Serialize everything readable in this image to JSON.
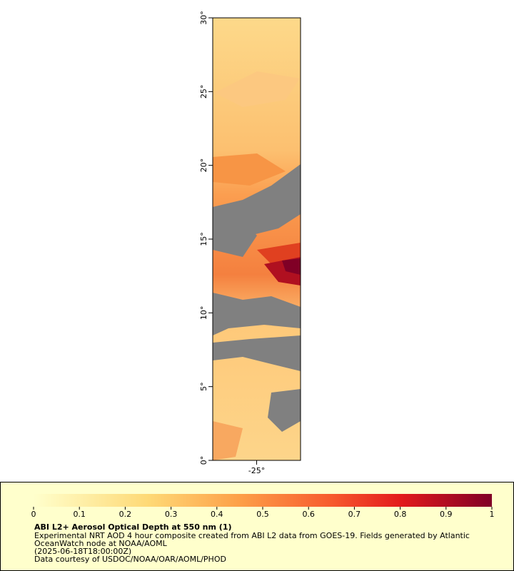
{
  "chart_data": {
    "type": "map",
    "xlim": [
      -28,
      -22
    ],
    "xticks": [
      {
        "value": -25,
        "label": "-25°"
      }
    ],
    "ylim": [
      0,
      30
    ],
    "yticks": [
      {
        "value": 0,
        "label": "0°"
      },
      {
        "value": 5,
        "label": "5°"
      },
      {
        "value": 10,
        "label": "10°"
      },
      {
        "value": 15,
        "label": "15°"
      },
      {
        "value": 20,
        "label": "20°"
      },
      {
        "value": 25,
        "label": "25°"
      },
      {
        "value": 30,
        "label": "30°"
      }
    ],
    "colorbar": {
      "lim": [
        0,
        1
      ],
      "ticks": [
        0,
        0.1,
        0.2,
        0.3,
        0.4,
        0.5,
        0.6,
        0.7,
        0.8,
        0.9,
        1
      ]
    },
    "title": "ABI L2+ Aerosol Optical Depth at 550 nm (1)",
    "notes": [
      "Experimental NRT AOD 4 hour composite created from ABI L2 data from GOES-19. Fields generated by Atlantic",
      "OceanWatch node at NOAA/AOML",
      "(2025-06-18T18:00:00Z)",
      "Data courtesy of USDOC/NOAA/OAR/AOML/PHOD"
    ]
  }
}
